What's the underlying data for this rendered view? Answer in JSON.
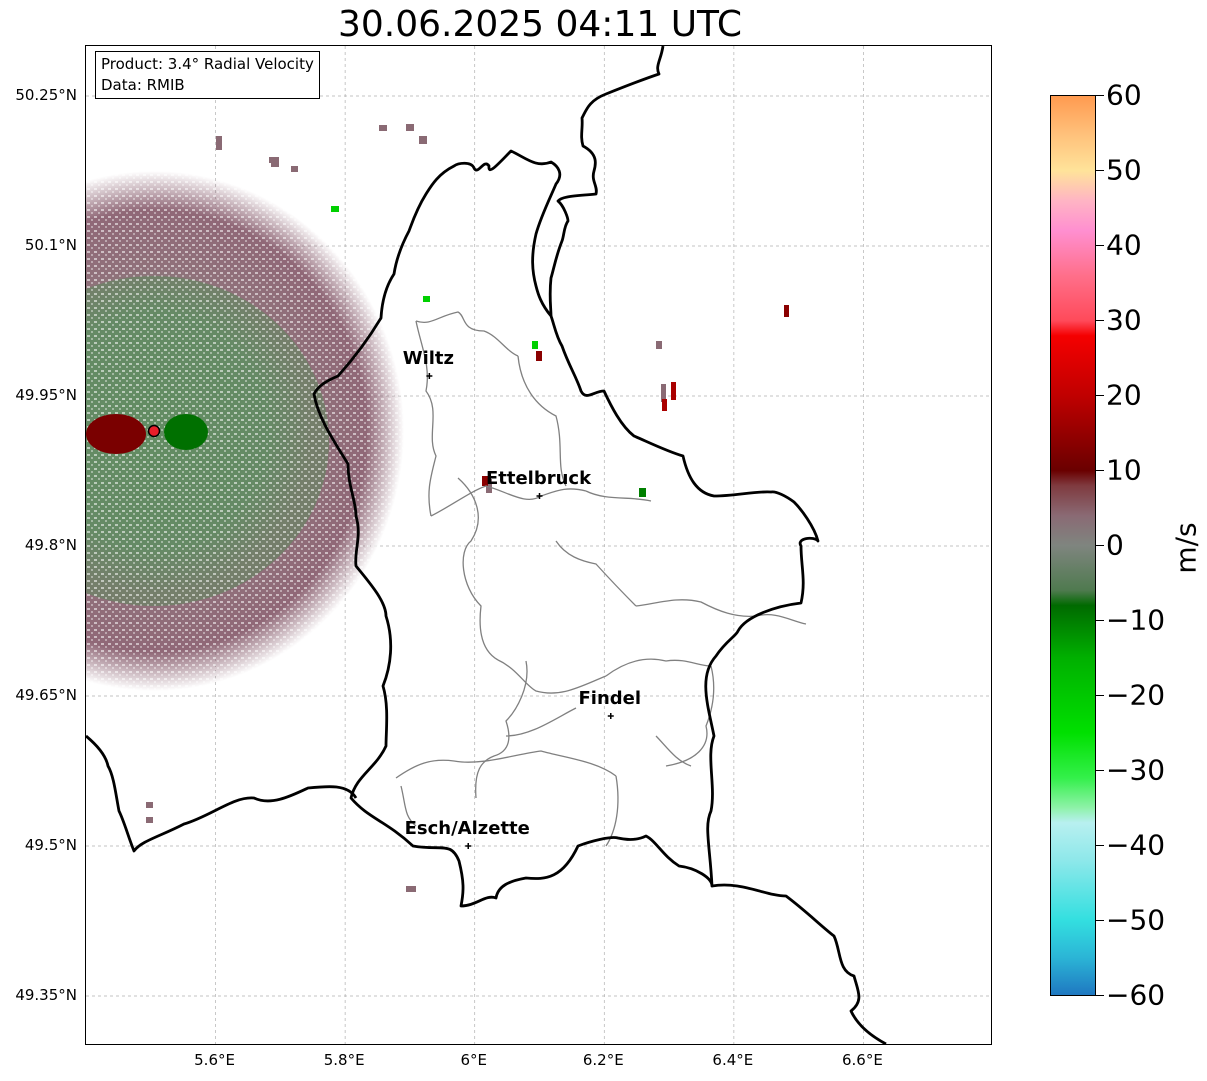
{
  "title": "30.06.2025 04:11 UTC",
  "info_box": {
    "product": "Product: 3.4° Radial Velocity",
    "data_source": "Data: RMIB"
  },
  "axes": {
    "lat_ticks": [
      {
        "value": 50.25,
        "label": "50.25°N"
      },
      {
        "value": 50.1,
        "label": "50.1°N"
      },
      {
        "value": 49.95,
        "label": "49.95°N"
      },
      {
        "value": 49.8,
        "label": "49.8°N"
      },
      {
        "value": 49.65,
        "label": "49.65°N"
      },
      {
        "value": 49.5,
        "label": "49.5°N"
      },
      {
        "value": 49.35,
        "label": "49.35°N"
      }
    ],
    "lon_ticks": [
      {
        "value": 5.6,
        "label": "5.6°E"
      },
      {
        "value": 5.8,
        "label": "5.8°E"
      },
      {
        "value": 6.0,
        "label": "6°E"
      },
      {
        "value": 6.2,
        "label": "6.2°E"
      },
      {
        "value": 6.4,
        "label": "6.4°E"
      },
      {
        "value": 6.6,
        "label": "6.6°E"
      }
    ],
    "lon_range": [
      5.4,
      6.8
    ],
    "lat_range": [
      49.3,
      50.3
    ],
    "grid": true
  },
  "cities": [
    {
      "name": "Wiltz",
      "lon": 5.93,
      "lat": 49.97
    },
    {
      "name": "Ettelbruck",
      "lon": 6.1,
      "lat": 49.85
    },
    {
      "name": "Findel",
      "lon": 6.21,
      "lat": 49.63
    },
    {
      "name": "Esch/Alzette",
      "lon": 5.99,
      "lat": 49.5
    }
  ],
  "radar_site": {
    "lon": 5.505,
    "lat": 49.915,
    "color": "#e8202a"
  },
  "colorbar": {
    "unit": "m/s",
    "min": -60,
    "max": 60,
    "ticks": [
      {
        "value": 60,
        "label": "60"
      },
      {
        "value": 50,
        "label": "50"
      },
      {
        "value": 40,
        "label": "40"
      },
      {
        "value": 30,
        "label": "30"
      },
      {
        "value": 20,
        "label": "20"
      },
      {
        "value": 10,
        "label": "10"
      },
      {
        "value": 0,
        "label": "0"
      },
      {
        "value": -10,
        "label": "−10"
      },
      {
        "value": -20,
        "label": "−20"
      },
      {
        "value": -30,
        "label": "−30"
      },
      {
        "value": -40,
        "label": "−40"
      },
      {
        "value": -50,
        "label": "−50"
      },
      {
        "value": -60,
        "label": "−60"
      }
    ],
    "stops": [
      {
        "value": -60,
        "color": "#1f78c1"
      },
      {
        "value": -55,
        "color": "#2bb5d6"
      },
      {
        "value": -50,
        "color": "#33dfe0"
      },
      {
        "value": -42,
        "color": "#8ee8ea"
      },
      {
        "value": -37,
        "color": "#b8f0f0"
      },
      {
        "value": -35,
        "color": "#8ef2a8"
      },
      {
        "value": -31,
        "color": "#33f04a"
      },
      {
        "value": -25,
        "color": "#00e000"
      },
      {
        "value": -15,
        "color": "#00b000"
      },
      {
        "value": -8,
        "color": "#006a00"
      },
      {
        "value": -6,
        "color": "#4f7a4f"
      },
      {
        "value": 0,
        "color": "#7f857f"
      },
      {
        "value": 4,
        "color": "#8a6a74"
      },
      {
        "value": 8,
        "color": "#7f3a3f"
      },
      {
        "value": 10,
        "color": "#6a0000"
      },
      {
        "value": 20,
        "color": "#c00000"
      },
      {
        "value": 28,
        "color": "#f50000"
      },
      {
        "value": 30,
        "color": "#ff4a5a"
      },
      {
        "value": 36,
        "color": "#ff6f8a"
      },
      {
        "value": 42,
        "color": "#ff8fd0"
      },
      {
        "value": 46,
        "color": "#ffb4c4"
      },
      {
        "value": 50,
        "color": "#ffe39a"
      },
      {
        "value": 55,
        "color": "#ffc07a"
      },
      {
        "value": 60,
        "color": "#ff9a50"
      }
    ]
  },
  "colors": {
    "echo_receding": "#8a6a74",
    "echo_approaching": "#5f8a5f",
    "border": "#000000",
    "canton": "#808080",
    "grid": "#b0b0b0"
  }
}
